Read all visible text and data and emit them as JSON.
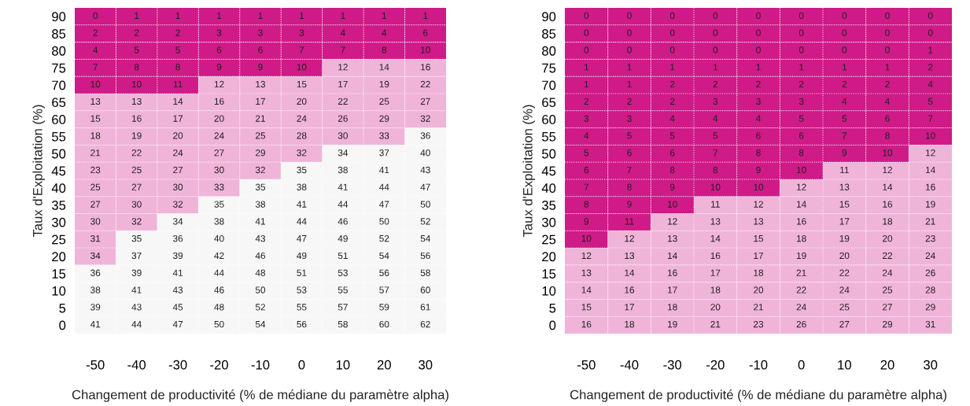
{
  "chart_data": [
    {
      "type": "heatmap",
      "xlabel": "Changement de productivité (% de médiane du paramètre alpha)",
      "ylabel": "Taux d'Exploitation (%)",
      "grid": true,
      "data_labels": true,
      "categories": [
        "-50",
        "-40",
        "-30",
        "-20",
        "-10",
        "0",
        "10",
        "20",
        "30"
      ],
      "y_categories": [
        "90",
        "85",
        "80",
        "75",
        "70",
        "65",
        "60",
        "55",
        "50",
        "45",
        "40",
        "35",
        "30",
        "25",
        "20",
        "15",
        "10",
        "5",
        "0"
      ],
      "cells": [
        [
          0,
          1,
          1,
          1,
          1,
          1,
          1,
          1,
          1
        ],
        [
          2,
          2,
          2,
          3,
          3,
          3,
          4,
          4,
          6
        ],
        [
          4,
          5,
          5,
          6,
          6,
          7,
          7,
          8,
          10
        ],
        [
          7,
          8,
          8,
          9,
          9,
          10,
          12,
          14,
          16
        ],
        [
          10,
          10,
          11,
          12,
          13,
          15,
          17,
          19,
          22
        ],
        [
          13,
          13,
          14,
          16,
          17,
          20,
          22,
          25,
          27
        ],
        [
          15,
          16,
          17,
          20,
          21,
          24,
          26,
          29,
          32
        ],
        [
          18,
          19,
          20,
          24,
          25,
          28,
          30,
          33,
          36
        ],
        [
          21,
          22,
          24,
          27,
          29,
          32,
          34,
          37,
          40
        ],
        [
          23,
          25,
          27,
          30,
          32,
          35,
          38,
          41,
          43
        ],
        [
          25,
          27,
          30,
          33,
          35,
          38,
          41,
          44,
          47
        ],
        [
          27,
          30,
          32,
          35,
          38,
          41,
          44,
          47,
          50
        ],
        [
          30,
          32,
          34,
          38,
          41,
          44,
          46,
          50,
          52
        ],
        [
          31,
          35,
          36,
          40,
          43,
          47,
          49,
          52,
          54
        ],
        [
          34,
          37,
          39,
          42,
          46,
          49,
          51,
          54,
          56
        ],
        [
          36,
          39,
          41,
          44,
          48,
          51,
          53,
          56,
          58
        ],
        [
          38,
          41,
          43,
          46,
          50,
          53,
          55,
          57,
          60
        ],
        [
          39,
          43,
          45,
          48,
          52,
          55,
          57,
          59,
          61
        ],
        [
          41,
          44,
          47,
          50,
          54,
          56,
          58,
          60,
          62
        ]
      ],
      "colors": [
        [
          "#cf1a87",
          "#cf1a87",
          "#cf1a87",
          "#cf1a87",
          "#cf1a87",
          "#cf1a87",
          "#cf1a87",
          "#cf1a87",
          "#cf1a87"
        ],
        [
          "#cf1a87",
          "#cf1a87",
          "#cf1a87",
          "#cf1a87",
          "#cf1a87",
          "#cf1a87",
          "#cf1a87",
          "#cf1a87",
          "#cf1a87"
        ],
        [
          "#cf1a87",
          "#cf1a87",
          "#cf1a87",
          "#cf1a87",
          "#cf1a87",
          "#cf1a87",
          "#cf1a87",
          "#cf1a87",
          "#cf1a87"
        ],
        [
          "#cf1a87",
          "#cf1a87",
          "#cf1a87",
          "#cf1a87",
          "#cf1a87",
          "#cf1a87",
          "#f0b4d9",
          "#f0b4d9",
          "#f0b4d9"
        ],
        [
          "#cf1a87",
          "#cf1a87",
          "#cf1a87",
          "#f0b4d9",
          "#f0b4d9",
          "#f0b4d9",
          "#f0b4d9",
          "#f0b4d9",
          "#f0b4d9"
        ],
        [
          "#f0b4d9",
          "#f0b4d9",
          "#f0b4d9",
          "#f0b4d9",
          "#f0b4d9",
          "#f0b4d9",
          "#f0b4d9",
          "#f0b4d9",
          "#f0b4d9"
        ],
        [
          "#f0b4d9",
          "#f0b4d9",
          "#f0b4d9",
          "#f0b4d9",
          "#f0b4d9",
          "#f0b4d9",
          "#f0b4d9",
          "#f0b4d9",
          "#f0b4d9"
        ],
        [
          "#f0b4d9",
          "#f0b4d9",
          "#f0b4d9",
          "#f0b4d9",
          "#f0b4d9",
          "#f0b4d9",
          "#f0b4d9",
          "#f0b4d9",
          "#f7f7f7"
        ],
        [
          "#f0b4d9",
          "#f0b4d9",
          "#f0b4d9",
          "#f0b4d9",
          "#f0b4d9",
          "#f0b4d9",
          "#f7f7f7",
          "#f7f7f7",
          "#f7f7f7"
        ],
        [
          "#f0b4d9",
          "#f0b4d9",
          "#f0b4d9",
          "#f0b4d9",
          "#f0b4d9",
          "#f7f7f7",
          "#f7f7f7",
          "#f7f7f7",
          "#f7f7f7"
        ],
        [
          "#f0b4d9",
          "#f0b4d9",
          "#f0b4d9",
          "#f0b4d9",
          "#f7f7f7",
          "#f7f7f7",
          "#f7f7f7",
          "#f7f7f7",
          "#f7f7f7"
        ],
        [
          "#f0b4d9",
          "#f0b4d9",
          "#f0b4d9",
          "#f7f7f7",
          "#f7f7f7",
          "#f7f7f7",
          "#f7f7f7",
          "#f7f7f7",
          "#f7f7f7"
        ],
        [
          "#f0b4d9",
          "#f0b4d9",
          "#f7f7f7",
          "#f7f7f7",
          "#f7f7f7",
          "#f7f7f7",
          "#f7f7f7",
          "#f7f7f7",
          "#f7f7f7"
        ],
        [
          "#f0b4d9",
          "#f7f7f7",
          "#f7f7f7",
          "#f7f7f7",
          "#f7f7f7",
          "#f7f7f7",
          "#f7f7f7",
          "#f7f7f7",
          "#f7f7f7"
        ],
        [
          "#f0b4d9",
          "#f7f7f7",
          "#f7f7f7",
          "#f7f7f7",
          "#f7f7f7",
          "#f7f7f7",
          "#f7f7f7",
          "#f7f7f7",
          "#f7f7f7"
        ],
        [
          "#f7f7f7",
          "#f7f7f7",
          "#f7f7f7",
          "#f7f7f7",
          "#f7f7f7",
          "#f7f7f7",
          "#f7f7f7",
          "#f7f7f7",
          "#f7f7f7"
        ],
        [
          "#f7f7f7",
          "#f7f7f7",
          "#f7f7f7",
          "#f7f7f7",
          "#f7f7f7",
          "#f7f7f7",
          "#f7f7f7",
          "#f7f7f7",
          "#f7f7f7"
        ],
        [
          "#f7f7f7",
          "#f7f7f7",
          "#f7f7f7",
          "#f7f7f7",
          "#f7f7f7",
          "#f7f7f7",
          "#f7f7f7",
          "#f7f7f7",
          "#f7f7f7"
        ],
        [
          "#f7f7f7",
          "#f7f7f7",
          "#f7f7f7",
          "#f7f7f7",
          "#f7f7f7",
          "#f7f7f7",
          "#f7f7f7",
          "#f7f7f7",
          "#f7f7f7"
        ]
      ]
    },
    {
      "type": "heatmap",
      "xlabel": "Changement de productivité (% de médiane du paramètre alpha)",
      "ylabel": "Taux d'Exploitation (%)",
      "grid": true,
      "data_labels": true,
      "categories": [
        "-50",
        "-40",
        "-30",
        "-20",
        "-10",
        "0",
        "10",
        "20",
        "30"
      ],
      "y_categories": [
        "90",
        "85",
        "80",
        "75",
        "70",
        "65",
        "60",
        "55",
        "50",
        "45",
        "40",
        "35",
        "30",
        "25",
        "20",
        "15",
        "10",
        "5",
        "0"
      ],
      "cells": [
        [
          0,
          0,
          0,
          0,
          0,
          0,
          0,
          0,
          0
        ],
        [
          0,
          0,
          0,
          0,
          0,
          0,
          0,
          0,
          0
        ],
        [
          0,
          0,
          0,
          0,
          0,
          0,
          0,
          0,
          1
        ],
        [
          1,
          1,
          1,
          1,
          1,
          1,
          1,
          1,
          2
        ],
        [
          1,
          1,
          2,
          2,
          2,
          2,
          2,
          2,
          4
        ],
        [
          2,
          2,
          2,
          3,
          3,
          3,
          4,
          4,
          5
        ],
        [
          3,
          3,
          4,
          4,
          4,
          5,
          5,
          6,
          7
        ],
        [
          4,
          5,
          5,
          5,
          6,
          6,
          7,
          8,
          10
        ],
        [
          5,
          6,
          6,
          7,
          8,
          8,
          9,
          10,
          12
        ],
        [
          6,
          7,
          8,
          8,
          9,
          10,
          11,
          12,
          14
        ],
        [
          7,
          8,
          9,
          10,
          10,
          12,
          13,
          14,
          16
        ],
        [
          8,
          9,
          10,
          11,
          12,
          14,
          15,
          16,
          19
        ],
        [
          9,
          11,
          12,
          13,
          13,
          16,
          17,
          18,
          21
        ],
        [
          10,
          12,
          13,
          14,
          15,
          18,
          19,
          20,
          23
        ],
        [
          12,
          13,
          14,
          16,
          17,
          19,
          20,
          22,
          24
        ],
        [
          13,
          14,
          16,
          17,
          18,
          21,
          22,
          24,
          26
        ],
        [
          14,
          16,
          17,
          18,
          20,
          22,
          24,
          25,
          28
        ],
        [
          15,
          17,
          18,
          20,
          21,
          24,
          25,
          27,
          29
        ],
        [
          16,
          18,
          19,
          21,
          23,
          26,
          27,
          29,
          31
        ]
      ],
      "colors": [
        [
          "#cf1a87",
          "#cf1a87",
          "#cf1a87",
          "#cf1a87",
          "#cf1a87",
          "#cf1a87",
          "#cf1a87",
          "#cf1a87",
          "#cf1a87"
        ],
        [
          "#cf1a87",
          "#cf1a87",
          "#cf1a87",
          "#cf1a87",
          "#cf1a87",
          "#cf1a87",
          "#cf1a87",
          "#cf1a87",
          "#cf1a87"
        ],
        [
          "#cf1a87",
          "#cf1a87",
          "#cf1a87",
          "#cf1a87",
          "#cf1a87",
          "#cf1a87",
          "#cf1a87",
          "#cf1a87",
          "#cf1a87"
        ],
        [
          "#cf1a87",
          "#cf1a87",
          "#cf1a87",
          "#cf1a87",
          "#cf1a87",
          "#cf1a87",
          "#cf1a87",
          "#cf1a87",
          "#cf1a87"
        ],
        [
          "#cf1a87",
          "#cf1a87",
          "#cf1a87",
          "#cf1a87",
          "#cf1a87",
          "#cf1a87",
          "#cf1a87",
          "#cf1a87",
          "#cf1a87"
        ],
        [
          "#cf1a87",
          "#cf1a87",
          "#cf1a87",
          "#cf1a87",
          "#cf1a87",
          "#cf1a87",
          "#cf1a87",
          "#cf1a87",
          "#cf1a87"
        ],
        [
          "#cf1a87",
          "#cf1a87",
          "#cf1a87",
          "#cf1a87",
          "#cf1a87",
          "#cf1a87",
          "#cf1a87",
          "#cf1a87",
          "#cf1a87"
        ],
        [
          "#cf1a87",
          "#cf1a87",
          "#cf1a87",
          "#cf1a87",
          "#cf1a87",
          "#cf1a87",
          "#cf1a87",
          "#cf1a87",
          "#cf1a87"
        ],
        [
          "#cf1a87",
          "#cf1a87",
          "#cf1a87",
          "#cf1a87",
          "#cf1a87",
          "#cf1a87",
          "#cf1a87",
          "#cf1a87",
          "#f0b4d9"
        ],
        [
          "#cf1a87",
          "#cf1a87",
          "#cf1a87",
          "#cf1a87",
          "#cf1a87",
          "#cf1a87",
          "#f0b4d9",
          "#f0b4d9",
          "#f0b4d9"
        ],
        [
          "#cf1a87",
          "#cf1a87",
          "#cf1a87",
          "#cf1a87",
          "#cf1a87",
          "#f0b4d9",
          "#f0b4d9",
          "#f0b4d9",
          "#f0b4d9"
        ],
        [
          "#cf1a87",
          "#cf1a87",
          "#cf1a87",
          "#f0b4d9",
          "#f0b4d9",
          "#f0b4d9",
          "#f0b4d9",
          "#f0b4d9",
          "#f0b4d9"
        ],
        [
          "#cf1a87",
          "#cf1a87",
          "#f0b4d9",
          "#f0b4d9",
          "#f0b4d9",
          "#f0b4d9",
          "#f0b4d9",
          "#f0b4d9",
          "#f0b4d9"
        ],
        [
          "#cf1a87",
          "#f0b4d9",
          "#f0b4d9",
          "#f0b4d9",
          "#f0b4d9",
          "#f0b4d9",
          "#f0b4d9",
          "#f0b4d9",
          "#f0b4d9"
        ],
        [
          "#f0b4d9",
          "#f0b4d9",
          "#f0b4d9",
          "#f0b4d9",
          "#f0b4d9",
          "#f0b4d9",
          "#f0b4d9",
          "#f0b4d9",
          "#f0b4d9"
        ],
        [
          "#f0b4d9",
          "#f0b4d9",
          "#f0b4d9",
          "#f0b4d9",
          "#f0b4d9",
          "#f0b4d9",
          "#f0b4d9",
          "#f0b4d9",
          "#f0b4d9"
        ],
        [
          "#f0b4d9",
          "#f0b4d9",
          "#f0b4d9",
          "#f0b4d9",
          "#f0b4d9",
          "#f0b4d9",
          "#f0b4d9",
          "#f0b4d9",
          "#f0b4d9"
        ],
        [
          "#f0b4d9",
          "#f0b4d9",
          "#f0b4d9",
          "#f0b4d9",
          "#f0b4d9",
          "#f0b4d9",
          "#f0b4d9",
          "#f0b4d9",
          "#f0b4d9"
        ],
        [
          "#f0b4d9",
          "#f0b4d9",
          "#f0b4d9",
          "#f0b4d9",
          "#f0b4d9",
          "#f0b4d9",
          "#f0b4d9",
          "#f0b4d9",
          "#f0b4d9"
        ]
      ]
    }
  ]
}
